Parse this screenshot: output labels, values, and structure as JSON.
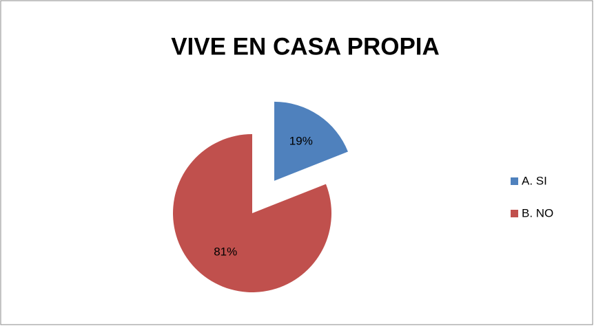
{
  "chart_data": {
    "type": "pie",
    "title": "VIVE EN CASA PROPIA",
    "categories": [
      "A. SI",
      "B. NO"
    ],
    "values": [
      19,
      81
    ],
    "value_labels": [
      "19%",
      "81%"
    ],
    "colors": [
      "#4f81bd",
      "#c0504d"
    ],
    "legend": "right"
  }
}
